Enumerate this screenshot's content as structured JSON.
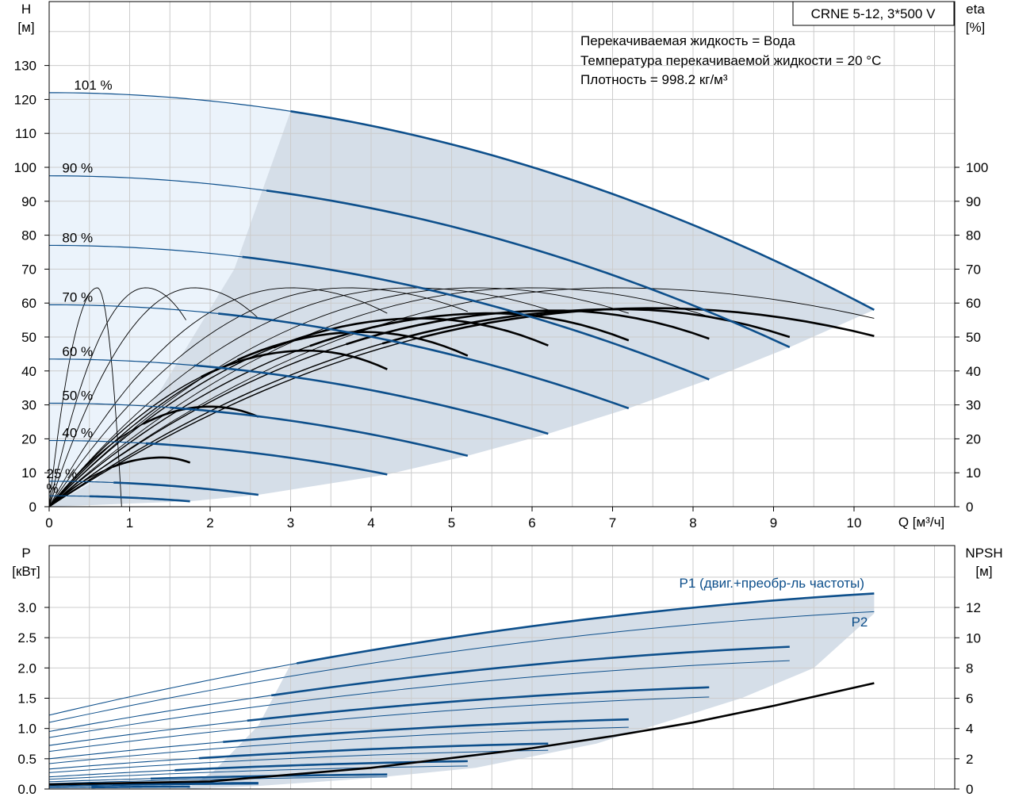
{
  "colors": {
    "envelope_fill": "#d5dee8",
    "light_fill": "#ebf3fb",
    "curve_blue": "#0d4f8b",
    "curve_black": "#000000",
    "grid": "#cccccc"
  },
  "chart_data": [
    {
      "type": "line",
      "model_label": "CRNE 5-12, 3*500 V",
      "info_lines": [
        "Перекачиваемая жидкость = Вода",
        "Температура перекачиваемой жидкости = 20 °C",
        "Плотность = 998.2 кг/м³"
      ],
      "xlabel": "Q [м³/ч]",
      "ylabel_line1": "H",
      "ylabel_line2": "[м]",
      "y2label_line1": "eta",
      "y2label_line2": "[%]",
      "xlim": [
        0,
        11.2
      ],
      "ylim": [
        0,
        148
      ],
      "xticks": [
        "0",
        "1",
        "2",
        "3",
        "4",
        "5",
        "6",
        "7",
        "8",
        "9",
        "10"
      ],
      "yticks": [
        "0",
        "10",
        "20",
        "30",
        "40",
        "50",
        "60",
        "70",
        "80",
        "90",
        "100",
        "110",
        "120",
        "130"
      ],
      "y2ticks": [
        "0",
        "10",
        "20",
        "30",
        "40",
        "50",
        "60",
        "70",
        "80",
        "90",
        "100"
      ],
      "head_curves": [
        {
          "label": "101 %",
          "h0": 122,
          "qmax": 10.25,
          "hmax": 58,
          "qstart": 3.0
        },
        {
          "label": "90 %",
          "h0": 97.5,
          "qmax": 9.2,
          "hmax": 47,
          "qstart": 2.7
        },
        {
          "label": "80 %",
          "h0": 77,
          "qmax": 8.2,
          "hmax": 37.5,
          "qstart": 2.4
        },
        {
          "label": "70 %",
          "h0": 59.5,
          "qmax": 7.2,
          "hmax": 29,
          "qstart": 2.1
        },
        {
          "label": "60 %",
          "h0": 43.5,
          "qmax": 6.2,
          "hmax": 21.5,
          "qstart": 1.8
        },
        {
          "label": "50 %",
          "h0": 30.5,
          "qmax": 5.2,
          "hmax": 15,
          "qstart": 1.5
        },
        {
          "label": "40 %",
          "h0": 19.5,
          "qmax": 4.2,
          "hmax": 9.5,
          "qstart": 1.2
        },
        {
          "label": "25 %",
          "h0": 7.5,
          "qmax": 2.6,
          "hmax": 3.5,
          "qstart": 0.8
        },
        {
          "label": "%",
          "h0": 3.2,
          "qmax": 1.75,
          "hmax": 1.6,
          "qstart": 0.5
        }
      ],
      "efficiency_curves": [
        {
          "qmax": 1.75,
          "etamax": 14.5,
          "qpeak": 1.4,
          "etaend": 13
        },
        {
          "qmax": 2.6,
          "etamax": 29.5,
          "qpeak": 2.0,
          "etaend": 26.5
        },
        {
          "qmax": 4.2,
          "etamax": 46,
          "qpeak": 3.2,
          "etaend": 40.5
        },
        {
          "qmax": 5.2,
          "etamax": 51.5,
          "qpeak": 3.9,
          "etaend": 44.5
        },
        {
          "qmax": 6.2,
          "etamax": 55.5,
          "qpeak": 4.6,
          "etaend": 47.5
        },
        {
          "qmax": 7.2,
          "etamax": 57,
          "qpeak": 5.5,
          "etaend": 49
        },
        {
          "qmax": 8.2,
          "etamax": 57.8,
          "qpeak": 6.3,
          "etaend": 49.5
        },
        {
          "qmax": 9.2,
          "etamax": 58.2,
          "qpeak": 7.1,
          "etaend": 50
        },
        {
          "qmax": 10.25,
          "etamax": 58.5,
          "qpeak": 7.5,
          "etaend": 50.3
        }
      ],
      "efficiency_curves_thin": [
        {
          "qmax": 0.9,
          "etamax": 64.5,
          "qpeak": 0.6,
          "etaend": 0
        },
        {
          "qmax": 1.7,
          "etamax": 64.5,
          "qpeak": 1.2,
          "etaend": 55
        },
        {
          "qmax": 2.6,
          "etamax": 64.5,
          "qpeak": 1.8,
          "etaend": 55.5
        },
        {
          "qmax": 4.2,
          "etamax": 64.5,
          "qpeak": 3.0,
          "etaend": 57
        },
        {
          "qmax": 5.2,
          "etamax": 64.5,
          "qpeak": 3.7,
          "etaend": 57.5
        },
        {
          "qmax": 6.2,
          "etamax": 64.5,
          "qpeak": 4.5,
          "etaend": 58
        },
        {
          "qmax": 7.2,
          "etamax": 64.5,
          "qpeak": 5.3,
          "etaend": 57
        },
        {
          "qmax": 8.2,
          "etamax": 64.5,
          "qpeak": 6.0,
          "etaend": 56
        },
        {
          "qmax": 10.25,
          "etamax": 64.5,
          "qpeak": 7.0,
          "etaend": 55.5
        }
      ]
    },
    {
      "type": "line",
      "xlim": [
        0,
        11.2
      ],
      "ylabel_line1": "P",
      "ylabel_line2": "[кВт]",
      "y2label_line1": "NPSH",
      "y2label_line2": "[м]",
      "ylim": [
        0,
        3.7
      ],
      "y2lim": [
        0,
        14.8
      ],
      "yticks": [
        "0.0",
        "0.5",
        "1.0",
        "1.5",
        "2.0",
        "2.5",
        "3.0"
      ],
      "y2ticks": [
        "0",
        "2",
        "4",
        "6",
        "8",
        "10",
        "12"
      ],
      "series": [
        {
          "name": "P1 (двиг.+преобр-ль частоты)",
          "p0": 1.22,
          "qmax": 10.25,
          "pmax": 3.23
        },
        {
          "name": "P2",
          "p0": 1.1,
          "qmax": 10.25,
          "pmax": 2.93
        }
      ],
      "p1_curves": [
        {
          "p0": 1.22,
          "qmax": 10.25,
          "pmax": 3.23
        },
        {
          "p0": 0.95,
          "qmax": 9.2,
          "pmax": 2.35
        },
        {
          "p0": 0.72,
          "qmax": 8.2,
          "pmax": 1.68
        },
        {
          "p0": 0.5,
          "qmax": 7.2,
          "pmax": 1.15
        },
        {
          "p0": 0.33,
          "qmax": 6.2,
          "pmax": 0.75
        },
        {
          "p0": 0.2,
          "qmax": 5.2,
          "pmax": 0.46
        },
        {
          "p0": 0.12,
          "qmax": 4.2,
          "pmax": 0.24
        },
        {
          "p0": 0.05,
          "qmax": 2.6,
          "pmax": 0.1
        },
        {
          "p0": 0.02,
          "qmax": 1.75,
          "pmax": 0.04
        }
      ],
      "p2_curves": [
        {
          "p0": 1.1,
          "qmax": 10.25,
          "pmax": 2.93
        },
        {
          "p0": 0.85,
          "qmax": 9.2,
          "pmax": 2.12
        },
        {
          "p0": 0.62,
          "qmax": 8.2,
          "pmax": 1.52
        },
        {
          "p0": 0.42,
          "qmax": 7.2,
          "pmax": 1.02
        },
        {
          "p0": 0.27,
          "qmax": 6.2,
          "pmax": 0.64
        },
        {
          "p0": 0.16,
          "qmax": 5.2,
          "pmax": 0.38
        },
        {
          "p0": 0.09,
          "qmax": 4.2,
          "pmax": 0.2
        },
        {
          "p0": 0.04,
          "qmax": 2.6,
          "pmax": 0.08
        },
        {
          "p0": 0.02,
          "qmax": 1.75,
          "pmax": 0.03
        }
      ],
      "npsh": {
        "q": [
          0,
          2,
          4,
          6,
          7,
          8,
          9,
          10.25
        ],
        "values": [
          0.3,
          0.5,
          1.4,
          2.7,
          3.5,
          4.4,
          5.5,
          7.0
        ]
      }
    }
  ]
}
